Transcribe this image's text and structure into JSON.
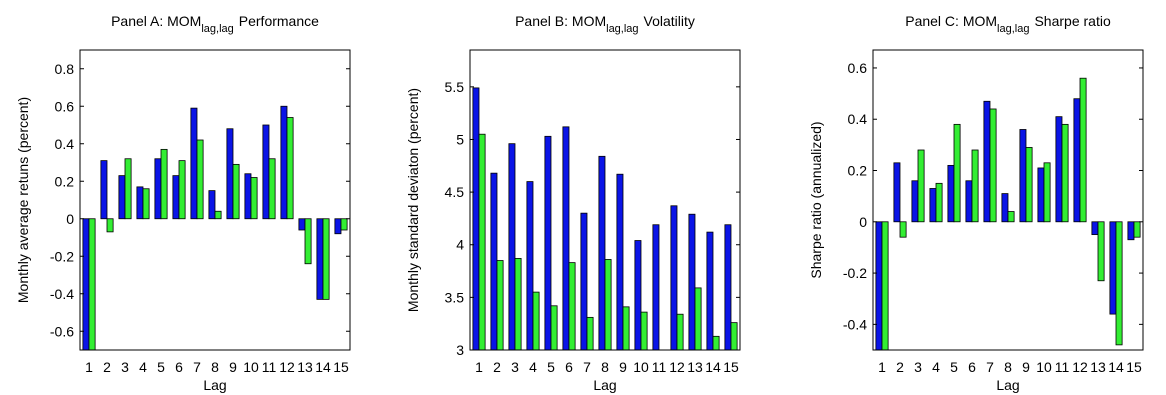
{
  "chart_data": [
    {
      "type": "bar",
      "title": [
        "Panel A: MOM",
        "lag,lag",
        "Performance"
      ],
      "xlabel": "Lag",
      "ylabel": "Monthly average retuns (percent)",
      "categories": [
        "1",
        "2",
        "3",
        "4",
        "5",
        "6",
        "7",
        "8",
        "9",
        "10",
        "11",
        "12",
        "13",
        "14",
        "15"
      ],
      "series": [
        {
          "color": "#0a14e6",
          "values": [
            -0.7,
            0.31,
            0.23,
            0.17,
            0.32,
            0.23,
            0.59,
            0.15,
            0.48,
            0.24,
            0.5,
            0.6,
            -0.06,
            -0.43,
            -0.08
          ]
        },
        {
          "color": "#33ee33",
          "values": [
            -0.7,
            -0.07,
            0.32,
            0.16,
            0.37,
            0.31,
            0.42,
            0.04,
            0.29,
            0.22,
            0.32,
            0.54,
            -0.24,
            -0.43,
            -0.06
          ]
        }
      ],
      "ylim": [
        -0.7,
        0.9
      ],
      "yticks": [
        -0.6,
        -0.4,
        -0.2,
        0,
        0.2,
        0.4,
        0.6,
        0.8
      ]
    },
    {
      "type": "bar",
      "title": [
        "Panel B: MOM",
        "lag,lag",
        "Volatility"
      ],
      "xlabel": "Lag",
      "ylabel": "Monthly standard deviaton (percent)",
      "categories": [
        "1",
        "2",
        "3",
        "4",
        "5",
        "6",
        "7",
        "8",
        "9",
        "10",
        "11",
        "12",
        "13",
        "14",
        "15"
      ],
      "series": [
        {
          "color": "#0a14e6",
          "values": [
            5.49,
            4.68,
            4.96,
            4.6,
            5.03,
            5.12,
            4.3,
            4.84,
            4.67,
            4.04,
            4.19,
            4.37,
            4.29,
            4.12,
            4.19
          ]
        },
        {
          "color": "#33ee33",
          "values": [
            5.05,
            3.85,
            3.87,
            3.55,
            3.42,
            3.83,
            3.31,
            3.86,
            3.41,
            3.36,
            3,
            3.34,
            3.59,
            3.13,
            3.26
          ]
        }
      ],
      "ylim": [
        3,
        5.85
      ],
      "yticks": [
        3,
        3.5,
        4,
        4.5,
        5,
        5.5
      ]
    },
    {
      "type": "bar",
      "title": [
        "Panel C: MOM",
        "lag,lag",
        "Sharpe ratio"
      ],
      "xlabel": "Lag",
      "ylabel": "Sharpe ratio (annualized)",
      "categories": [
        "1",
        "2",
        "3",
        "4",
        "5",
        "6",
        "7",
        "8",
        "9",
        "10",
        "11",
        "12",
        "13",
        "14",
        "15"
      ],
      "series": [
        {
          "color": "#0a14e6",
          "values": [
            -0.5,
            0.23,
            0.16,
            0.13,
            0.22,
            0.16,
            0.47,
            0.11,
            0.36,
            0.21,
            0.41,
            0.48,
            -0.05,
            -0.36,
            -0.07
          ]
        },
        {
          "color": "#33ee33",
          "values": [
            -0.5,
            -0.06,
            0.28,
            0.15,
            0.38,
            0.28,
            0.44,
            0.04,
            0.29,
            0.23,
            0.38,
            0.56,
            -0.23,
            -0.48,
            -0.06
          ]
        }
      ],
      "ylim": [
        -0.5,
        0.67
      ],
      "yticks": [
        -0.4,
        -0.2,
        0,
        0.2,
        0.4,
        0.6
      ]
    }
  ]
}
